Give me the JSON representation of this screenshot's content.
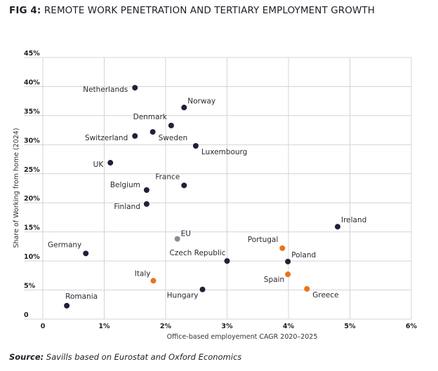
{
  "title": {
    "prefix": "FIG 4:",
    "text": "REMOTE WORK PENETRATION AND TERTIARY EMPLOYMENT GROWTH"
  },
  "source": {
    "prefix": "Source:",
    "text": "Savills based on Eurostat and Oxford Economics"
  },
  "colors": {
    "default": "#1e2238",
    "highlight": "#e8741c",
    "eu": "#8a8d99",
    "grid": "#d4d4d8"
  },
  "chart_data": {
    "type": "scatter",
    "title": "REMOTE WORK PENETRATION AND TERTIARY EMPLOYMENT GROWTH",
    "xlabel": "Office-based employement CAGR 2020–2025",
    "ylabel": "Share of Working from home (2024)",
    "xlim": [
      0,
      6
    ],
    "ylim": [
      0,
      45
    ],
    "grid": true,
    "x_ticks": [
      {
        "v": 0,
        "label": "0"
      },
      {
        "v": 1,
        "label": "1%"
      },
      {
        "v": 2,
        "label": "2%"
      },
      {
        "v": 3,
        "label": "3%"
      },
      {
        "v": 4,
        "label": "4%"
      },
      {
        "v": 5,
        "label": "5%"
      },
      {
        "v": 6,
        "label": "6%"
      }
    ],
    "y_ticks": [
      {
        "v": 0,
        "label": "0"
      },
      {
        "v": 5,
        "label": "5%"
      },
      {
        "v": 10,
        "label": "10%"
      },
      {
        "v": 15,
        "label": "15%"
      },
      {
        "v": 20,
        "label": "20%"
      },
      {
        "v": 25,
        "label": "25%"
      },
      {
        "v": 30,
        "label": "30%"
      },
      {
        "v": 35,
        "label": "35%"
      },
      {
        "v": 40,
        "label": "40%"
      },
      {
        "v": 45,
        "label": "45%"
      }
    ],
    "points": [
      {
        "name": "Netherlands",
        "x": 1.5,
        "y": 39.8,
        "group": "default",
        "pos": "left"
      },
      {
        "name": "Norway",
        "x": 2.3,
        "y": 36.4,
        "group": "default",
        "pos": "upper-right"
      },
      {
        "name": "Denmark",
        "x": 2.09,
        "y": 33.3,
        "group": "default",
        "pos": "upper-left"
      },
      {
        "name": "Switzerland",
        "x": 1.5,
        "y": 31.5,
        "group": "default",
        "pos": "left"
      },
      {
        "name": "Sweden",
        "x": 1.79,
        "y": 32.2,
        "group": "default",
        "pos": "lower-right"
      },
      {
        "name": "Luxembourg",
        "x": 2.49,
        "y": 29.8,
        "group": "default",
        "pos": "lower-right"
      },
      {
        "name": "UK",
        "x": 1.1,
        "y": 26.9,
        "group": "default",
        "pos": "left"
      },
      {
        "name": "France",
        "x": 2.3,
        "y": 23.0,
        "group": "default",
        "pos": "upper-left"
      },
      {
        "name": "Belgium",
        "x": 1.69,
        "y": 22.2,
        "group": "default",
        "pos": "left-up"
      },
      {
        "name": "Finland",
        "x": 1.69,
        "y": 19.8,
        "group": "default",
        "pos": "left-down"
      },
      {
        "name": "Ireland",
        "x": 4.8,
        "y": 15.9,
        "group": "default",
        "pos": "upper-right"
      },
      {
        "name": "EU",
        "x": 2.19,
        "y": 13.8,
        "group": "eu",
        "pos": "upper-right"
      },
      {
        "name": "Portugal",
        "x": 3.9,
        "y": 12.2,
        "group": "highlight",
        "pos": "upper-left"
      },
      {
        "name": "Germany",
        "x": 0.7,
        "y": 11.3,
        "group": "default",
        "pos": "upper-left"
      },
      {
        "name": "Czech Republic",
        "x": 3.0,
        "y": 10.0,
        "group": "default",
        "pos": "upper-left"
      },
      {
        "name": "Poland",
        "x": 3.99,
        "y": 9.9,
        "group": "default",
        "pos": "upper-right"
      },
      {
        "name": "Spain",
        "x": 3.99,
        "y": 7.7,
        "group": "highlight",
        "pos": "lower-left"
      },
      {
        "name": "Italy",
        "x": 1.8,
        "y": 6.6,
        "group": "highlight",
        "pos": "upper-left"
      },
      {
        "name": "Greece",
        "x": 4.3,
        "y": 5.2,
        "group": "highlight",
        "pos": "lower-right"
      },
      {
        "name": "Hungary",
        "x": 2.6,
        "y": 5.1,
        "group": "default",
        "pos": "lower-left"
      },
      {
        "name": "Romania",
        "x": 0.39,
        "y": 2.3,
        "group": "default",
        "pos": "upper-right"
      }
    ]
  }
}
